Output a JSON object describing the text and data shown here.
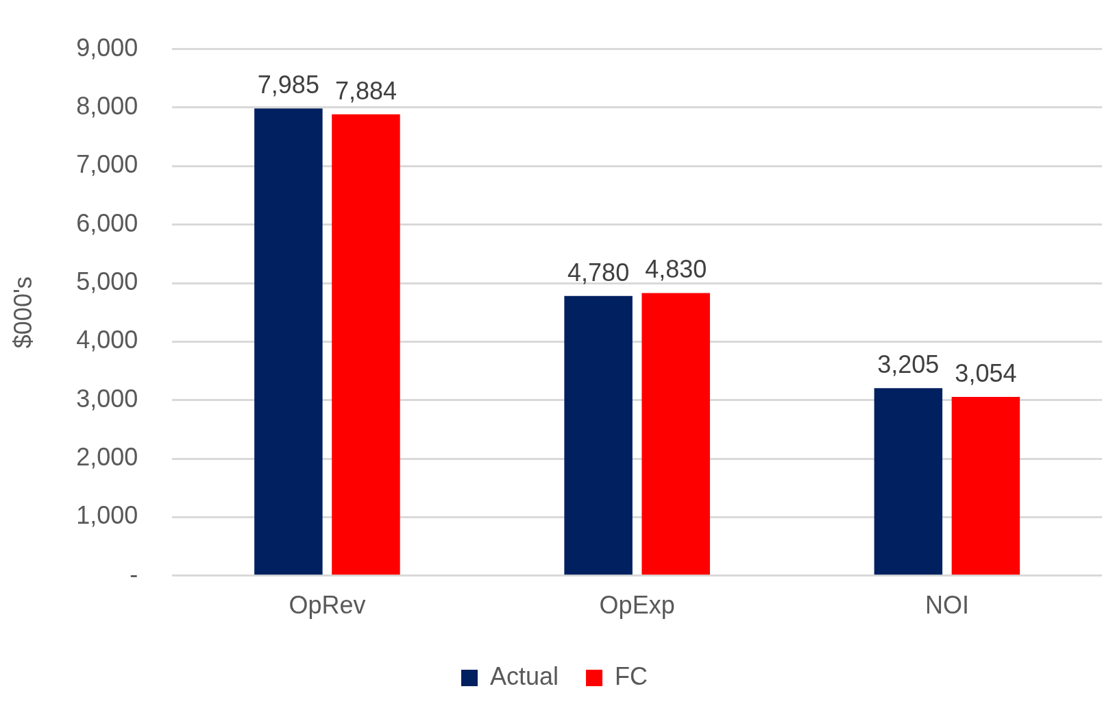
{
  "chart_data": {
    "type": "bar",
    "ylabel": "$000's",
    "categories": [
      "OpRev",
      "OpExp",
      "NOI"
    ],
    "series": [
      {
        "name": "Actual",
        "color": "#002060",
        "values": [
          7985,
          4780,
          3205
        ],
        "value_labels": [
          "7,985",
          "4,780",
          "3,205"
        ]
      },
      {
        "name": "FC",
        "color": "#ff0000",
        "values": [
          7884,
          4830,
          3054
        ],
        "value_labels": [
          "7,884",
          "4,830",
          "3,054"
        ]
      }
    ],
    "ylim": [
      0,
      9000
    ],
    "yticks": [
      {
        "value": 0,
        "label": "-"
      },
      {
        "value": 1000,
        "label": "1,000"
      },
      {
        "value": 2000,
        "label": "2,000"
      },
      {
        "value": 3000,
        "label": "3,000"
      },
      {
        "value": 4000,
        "label": "4,000"
      },
      {
        "value": 5000,
        "label": "5,000"
      },
      {
        "value": 6000,
        "label": "6,000"
      },
      {
        "value": 7000,
        "label": "7,000"
      },
      {
        "value": 8000,
        "label": "8,000"
      },
      {
        "value": 9000,
        "label": "9,000"
      }
    ],
    "grid": "y",
    "legend": "bottom"
  }
}
